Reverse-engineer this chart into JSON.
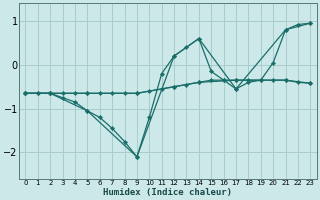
{
  "xlabel": "Humidex (Indice chaleur)",
  "bg_color": "#cce8e8",
  "grid_color": "#aacccc",
  "line_color": "#1a6e6a",
  "xlim": [
    -0.5,
    23.5
  ],
  "ylim": [
    -2.6,
    1.4
  ],
  "yticks": [
    -2,
    -1,
    0,
    1
  ],
  "xticks": [
    0,
    1,
    2,
    3,
    4,
    5,
    6,
    7,
    8,
    9,
    10,
    11,
    12,
    13,
    14,
    15,
    16,
    17,
    18,
    19,
    20,
    21,
    22,
    23
  ],
  "lines": [
    {
      "x": [
        0,
        1,
        2,
        3,
        4,
        5,
        6,
        7,
        8,
        9,
        10,
        11,
        12,
        13,
        14,
        15,
        16,
        17,
        18,
        19,
        20,
        21,
        22,
        23
      ],
      "y": [
        -0.65,
        -0.65,
        -0.65,
        -0.75,
        -0.85,
        -1.05,
        -1.2,
        -1.45,
        -1.75,
        -2.1,
        -1.2,
        -0.2,
        0.2,
        0.4,
        0.6,
        -0.15,
        -0.35,
        -0.55,
        -0.4,
        -0.35,
        0.05,
        0.8,
        0.92,
        0.95
      ]
    },
    {
      "x": [
        0,
        1,
        2,
        3,
        4,
        5,
        6,
        7,
        8,
        9,
        10,
        11,
        12,
        13,
        14,
        15,
        16,
        17,
        18,
        19,
        20,
        21,
        22,
        23
      ],
      "y": [
        -0.65,
        -0.65,
        -0.65,
        -0.65,
        -0.65,
        -0.65,
        -0.65,
        -0.65,
        -0.65,
        -0.65,
        -0.6,
        -0.55,
        -0.5,
        -0.45,
        -0.4,
        -0.35,
        -0.35,
        -0.35,
        -0.35,
        -0.35,
        -0.35,
        -0.35,
        -0.4,
        -0.42
      ]
    },
    {
      "x": [
        0,
        2,
        5,
        9,
        12,
        14,
        17,
        21,
        23
      ],
      "y": [
        -0.65,
        -0.65,
        -1.05,
        -2.1,
        0.2,
        0.6,
        -0.55,
        0.8,
        0.95
      ]
    },
    {
      "x": [
        0,
        2,
        5,
        9,
        12,
        14,
        17,
        21,
        23
      ],
      "y": [
        -0.65,
        -0.65,
        -0.65,
        -0.65,
        -0.5,
        -0.4,
        -0.35,
        -0.35,
        -0.42
      ]
    }
  ]
}
